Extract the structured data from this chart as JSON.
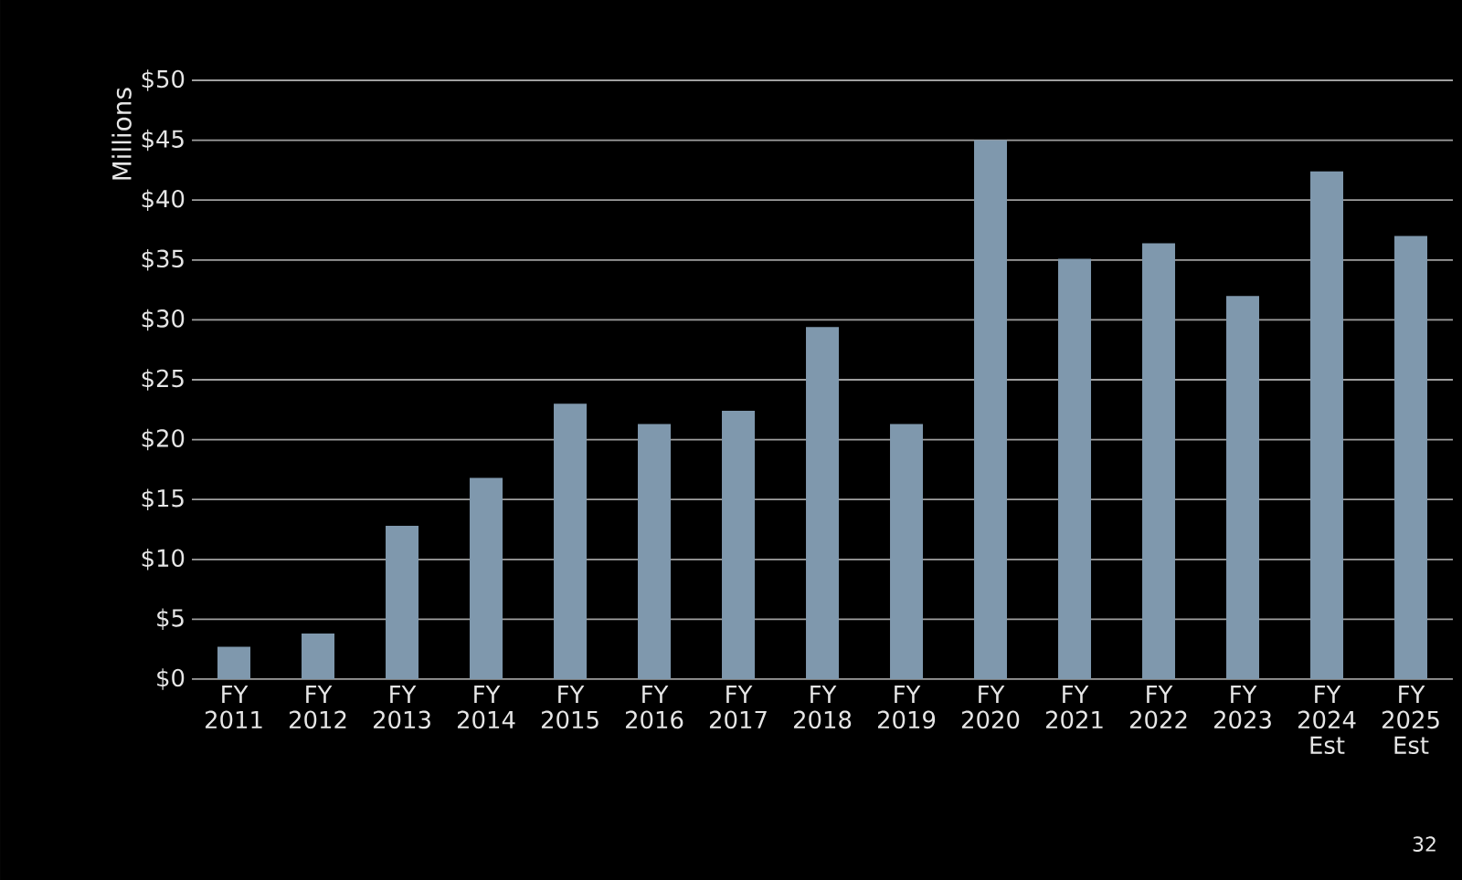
{
  "chart_data": {
    "type": "bar",
    "ylabel": "Millions",
    "categories": [
      "FY 2011",
      "FY 2012",
      "FY 2013",
      "FY 2014",
      "FY 2015",
      "FY 2016",
      "FY 2017",
      "FY 2018",
      "FY 2019",
      "FY 2020",
      "FY 2021",
      "FY 2022",
      "FY 2023",
      "FY 2024 Est",
      "FY 2025 Est"
    ],
    "values": [
      2.7,
      3.8,
      12.8,
      16.8,
      23.0,
      21.3,
      22.4,
      29.4,
      21.3,
      45.0,
      35.1,
      36.4,
      32.0,
      42.4,
      37.0
    ],
    "color": "#7f98ad",
    "ylim": [
      0,
      50
    ],
    "yticks": [
      {
        "value": 0,
        "label": "$0"
      },
      {
        "value": 5,
        "label": "$5"
      },
      {
        "value": 10,
        "label": "$10"
      },
      {
        "value": 15,
        "label": "$15"
      },
      {
        "value": 20,
        "label": "$20"
      },
      {
        "value": 25,
        "label": "$25"
      },
      {
        "value": 30,
        "label": "$30"
      },
      {
        "value": 35,
        "label": "$35"
      },
      {
        "value": 40,
        "label": "$40"
      },
      {
        "value": 45,
        "label": "$45"
      },
      {
        "value": 50,
        "label": "$50"
      }
    ],
    "grid": "y",
    "annotations": [
      "32"
    ]
  }
}
